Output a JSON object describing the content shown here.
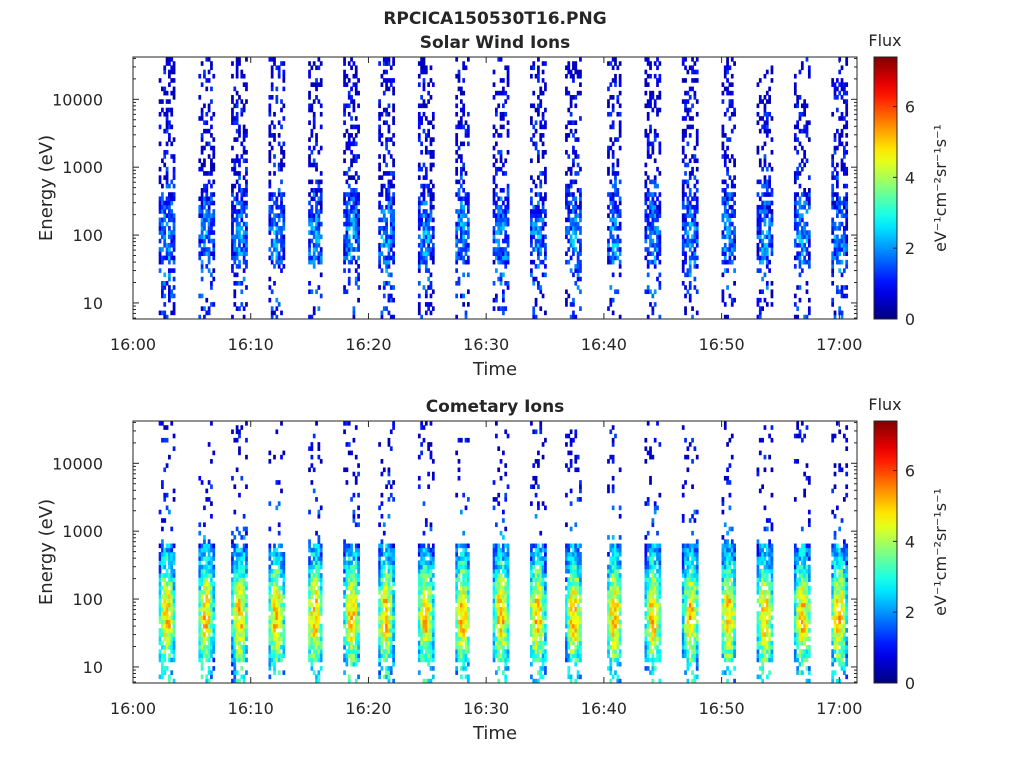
{
  "figure_title": "RPCICA150530T16.PNG",
  "chart_data": [
    {
      "type": "heatmap",
      "title": "Solar Wind Ions",
      "xlabel": "Time",
      "ylabel": "Energy (eV)",
      "x_ticks": [
        "16:00",
        "16:10",
        "16:20",
        "16:30",
        "16:40",
        "16:50",
        "17:00"
      ],
      "x_tick_minutes": [
        0,
        10,
        20,
        30,
        40,
        50,
        60
      ],
      "xlim_minutes": [
        0,
        61.5
      ],
      "y_scale": "log",
      "y_ticks": [
        "10",
        "100",
        "1000",
        "10000"
      ],
      "y_tick_values": [
        10,
        100,
        1000,
        10000
      ],
      "ylim": [
        5.8,
        42000
      ],
      "colorbar": {
        "title": "Flux",
        "label": "eV⁻¹cm⁻²sr⁻¹s⁻¹",
        "ticks": [
          "0",
          "2",
          "4",
          "6"
        ],
        "tick_values": [
          0,
          2,
          4,
          6
        ],
        "range": [
          0,
          7.4
        ],
        "colormap": "jet"
      },
      "bursts_start_minutes": [
        2.2,
        5.5,
        8.4,
        11.5,
        14.8,
        17.9,
        20.8,
        24.2,
        27.3,
        30.6,
        33.7,
        36.8,
        40.2,
        43.5,
        46.7,
        49.9,
        53.0,
        56.2,
        59.3
      ],
      "typical_flux_by_energy": [
        {
          "energy": 10,
          "flux": 1.2
        },
        {
          "energy": 30,
          "flux": 1.6
        },
        {
          "energy": 100,
          "flux": 2.0
        },
        {
          "energy": 300,
          "flux": 1.4
        },
        {
          "energy": 1000,
          "flux": 0.8
        },
        {
          "energy": 10000,
          "flux": 0.6
        }
      ]
    },
    {
      "type": "heatmap",
      "title": "Cometary Ions",
      "xlabel": "Time",
      "ylabel": "Energy (eV)",
      "x_ticks": [
        "16:00",
        "16:10",
        "16:20",
        "16:30",
        "16:40",
        "16:50",
        "17:00"
      ],
      "x_tick_minutes": [
        0,
        10,
        20,
        30,
        40,
        50,
        60
      ],
      "xlim_minutes": [
        0,
        61.5
      ],
      "y_scale": "log",
      "y_ticks": [
        "10",
        "100",
        "1000",
        "10000"
      ],
      "y_tick_values": [
        10,
        100,
        1000,
        10000
      ],
      "ylim": [
        5.8,
        42000
      ],
      "colorbar": {
        "title": "Flux",
        "label": "eV⁻¹cm⁻²sr⁻¹s⁻¹",
        "ticks": [
          "0",
          "2",
          "4",
          "6"
        ],
        "tick_values": [
          0,
          2,
          4,
          6
        ],
        "range": [
          0,
          7.4
        ],
        "colormap": "jet"
      },
      "bursts_start_minutes": [
        2.2,
        5.5,
        8.4,
        11.5,
        14.8,
        17.9,
        20.8,
        24.2,
        27.3,
        30.6,
        33.7,
        36.8,
        40.2,
        43.5,
        46.7,
        49.9,
        53.0,
        56.2,
        59.3
      ],
      "typical_flux_by_energy": [
        {
          "energy": 10,
          "flux": 3.0
        },
        {
          "energy": 40,
          "flux": 5.0
        },
        {
          "energy": 100,
          "flux": 4.8
        },
        {
          "energy": 300,
          "flux": 3.0
        },
        {
          "energy": 1000,
          "flux": 1.5
        },
        {
          "energy": 10000,
          "flux": 0.6
        }
      ]
    }
  ]
}
